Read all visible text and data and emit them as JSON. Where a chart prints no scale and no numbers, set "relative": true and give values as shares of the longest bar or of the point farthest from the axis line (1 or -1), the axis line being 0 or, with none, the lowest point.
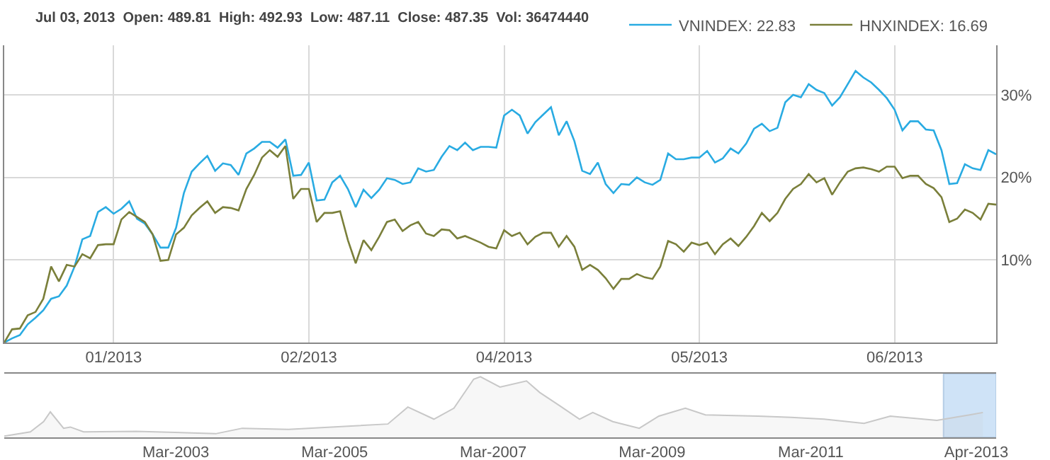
{
  "chart_data": [
    {
      "type": "line",
      "title": "Jul 03, 2013  Open: 489.81  High: 492.93  Low: 487.11  Close: 487.35  Vol: 36474440",
      "categories": [
        null,
        null,
        null,
        null,
        null,
        null,
        null,
        null,
        null,
        null,
        null,
        null,
        null,
        null,
        "01/2013",
        null,
        null,
        null,
        null,
        null,
        null,
        null,
        null,
        null,
        null,
        null,
        null,
        null,
        null,
        null,
        null,
        null,
        null,
        null,
        null,
        null,
        null,
        null,
        null,
        "02/2013",
        null,
        null,
        null,
        null,
        null,
        null,
        null,
        null,
        null,
        null,
        null,
        null,
        null,
        null,
        null,
        null,
        null,
        null,
        null,
        null,
        null,
        null,
        null,
        null,
        "04/2013",
        null,
        null,
        null,
        null,
        null,
        null,
        null,
        null,
        null,
        null,
        null,
        null,
        null,
        null,
        null,
        null,
        null,
        null,
        null,
        null,
        null,
        null,
        null,
        null,
        "05/2013",
        null,
        null,
        null,
        null,
        null,
        null,
        null,
        null,
        null,
        null,
        null,
        null,
        null,
        null,
        null,
        null,
        null,
        null,
        null,
        null,
        null,
        null,
        null,
        null,
        "06/2013",
        null,
        null,
        null,
        null,
        null,
        null,
        null,
        null,
        null,
        null,
        null,
        null,
        null
      ],
      "ylim": [
        0,
        36
      ],
      "yticks": [
        {
          "value": 10,
          "label": "10%"
        },
        {
          "value": 20,
          "label": "20%"
        },
        {
          "value": 30,
          "label": "30%"
        }
      ],
      "grid": true,
      "legend": "top right",
      "series": [
        {
          "name": "VNINDEX: 22.83",
          "color": "#29abe2",
          "values": [
            0,
            0.5,
            0.9,
            2.2,
            3.0,
            3.9,
            5.3,
            5.6,
            6.9,
            9.2,
            12.5,
            12.9,
            15.8,
            16.4,
            15.6,
            16.2,
            17.1,
            15.0,
            14.4,
            13.1,
            11.5,
            11.5,
            13.9,
            18.1,
            20.7,
            21.7,
            22.6,
            20.8,
            21.7,
            21.5,
            20.3,
            22.9,
            23.5,
            24.3,
            24.3,
            23.6,
            24.6,
            20.2,
            20.3,
            21.8,
            17.2,
            17.3,
            19.4,
            20.2,
            18.6,
            16.4,
            18.5,
            17.5,
            18.5,
            19.9,
            19.7,
            19.2,
            19.4,
            21.1,
            20.7,
            20.9,
            22.5,
            23.8,
            23.3,
            24.2,
            23.3,
            23.7,
            23.7,
            23.6,
            27.5,
            28.2,
            27.5,
            25.3,
            26.7,
            27.6,
            28.5,
            25.1,
            26.8,
            24.4,
            20.8,
            20.4,
            21.8,
            19.2,
            18.1,
            19.2,
            19.1,
            20.0,
            19.4,
            19.1,
            19.7,
            22.9,
            22.2,
            22.2,
            22.4,
            22.4,
            23.2,
            21.8,
            22.3,
            23.5,
            22.9,
            24.1,
            25.9,
            26.5,
            25.6,
            26.0,
            29.1,
            30.0,
            29.7,
            31.3,
            30.6,
            30.2,
            28.7,
            29.7,
            31.3,
            32.9,
            32.1,
            31.5,
            30.6,
            29.6,
            28.2,
            25.7,
            26.8,
            26.8,
            25.8,
            25.7,
            23.3,
            19.2,
            19.3,
            21.6,
            21.1,
            20.9,
            23.3,
            22.8
          ]
        },
        {
          "name": "HNXINDEX: 16.69",
          "color": "#7a7f3a",
          "values": [
            0,
            1.6,
            1.7,
            3.3,
            3.7,
            5.3,
            9.2,
            7.4,
            9.4,
            9.2,
            10.7,
            10.2,
            11.8,
            11.9,
            11.9,
            14.9,
            15.8,
            15.2,
            14.6,
            13.1,
            9.9,
            10.0,
            13.1,
            13.9,
            15.4,
            16.3,
            17.1,
            15.7,
            16.4,
            16.3,
            16.0,
            18.6,
            20.3,
            22.4,
            23.3,
            22.5,
            23.8,
            17.4,
            18.6,
            18.6,
            14.6,
            15.7,
            15.7,
            15.9,
            12.4,
            9.6,
            12.4,
            11.2,
            12.8,
            14.6,
            14.9,
            13.5,
            14.2,
            14.6,
            13.2,
            12.9,
            13.7,
            13.6,
            12.6,
            12.9,
            12.5,
            12.1,
            11.6,
            11.4,
            13.6,
            12.9,
            13.3,
            11.9,
            12.8,
            13.3,
            13.3,
            11.6,
            12.9,
            11.6,
            8.8,
            9.4,
            8.8,
            7.8,
            6.5,
            7.7,
            7.7,
            8.3,
            7.9,
            7.7,
            9.2,
            12.3,
            11.9,
            11.0,
            12.1,
            11.8,
            12.1,
            10.7,
            11.9,
            12.6,
            11.7,
            12.8,
            14.1,
            15.7,
            14.7,
            15.7,
            17.4,
            18.6,
            19.2,
            20.4,
            19.4,
            19.9,
            17.9,
            19.4,
            20.7,
            21.1,
            21.2,
            21.0,
            20.7,
            21.3,
            21.3,
            19.9,
            20.2,
            20.2,
            19.2,
            18.7,
            17.6,
            14.6,
            15.0,
            16.1,
            15.7,
            14.9,
            16.8,
            16.7
          ]
        }
      ]
    },
    {
      "type": "area",
      "relative": true,
      "color": "#c8c8c8",
      "x": [
        "2001-01",
        "2001-05",
        "2001-07",
        "2001-08",
        "2001-10",
        "2001-11",
        "2002-01",
        "2002-09",
        "2003-09",
        "2004-01",
        "2004-08",
        "2005-06",
        "2005-11",
        "2006-02",
        "2006-06",
        "2006-09",
        "2006-12",
        "2007-01",
        "2007-04",
        "2007-08",
        "2007-10",
        "2008-01",
        "2008-04",
        "2008-06",
        "2008-09",
        "2009-01",
        "2009-04",
        "2009-08",
        "2009-11",
        "2010-07",
        "2010-12",
        "2011-05",
        "2011-11",
        "2012-03",
        "2012-10",
        "2013-03",
        "2013-05"
      ],
      "values": [
        0.02,
        0.09,
        0.26,
        0.42,
        0.15,
        0.17,
        0.09,
        0.1,
        0.06,
        0.15,
        0.13,
        0.19,
        0.22,
        0.5,
        0.3,
        0.48,
        0.96,
        1,
        0.83,
        0.93,
        0.74,
        0.52,
        0.3,
        0.41,
        0.26,
        0.15,
        0.35,
        0.48,
        0.37,
        0.35,
        0.33,
        0.3,
        0.23,
        0.35,
        0.28,
        0.37,
        0.41
      ],
      "xlim": [
        "2001-01",
        "2013-07"
      ],
      "xticks": [
        {
          "value": "2003-03",
          "label": "Mar-2003"
        },
        {
          "value": "2005-03",
          "label": "Mar-2005"
        },
        {
          "value": "2007-03",
          "label": "Mar-2007"
        },
        {
          "value": "2009-03",
          "label": "Mar-2009"
        },
        {
          "value": "2011-03",
          "label": "Mar-2011"
        },
        {
          "value": "2013-04",
          "label": "Apr-2013"
        }
      ],
      "bands": [
        {
          "axis": "x",
          "from": "2012-11",
          "to": "2013-07",
          "color": "#cfe3f7"
        }
      ]
    }
  ]
}
